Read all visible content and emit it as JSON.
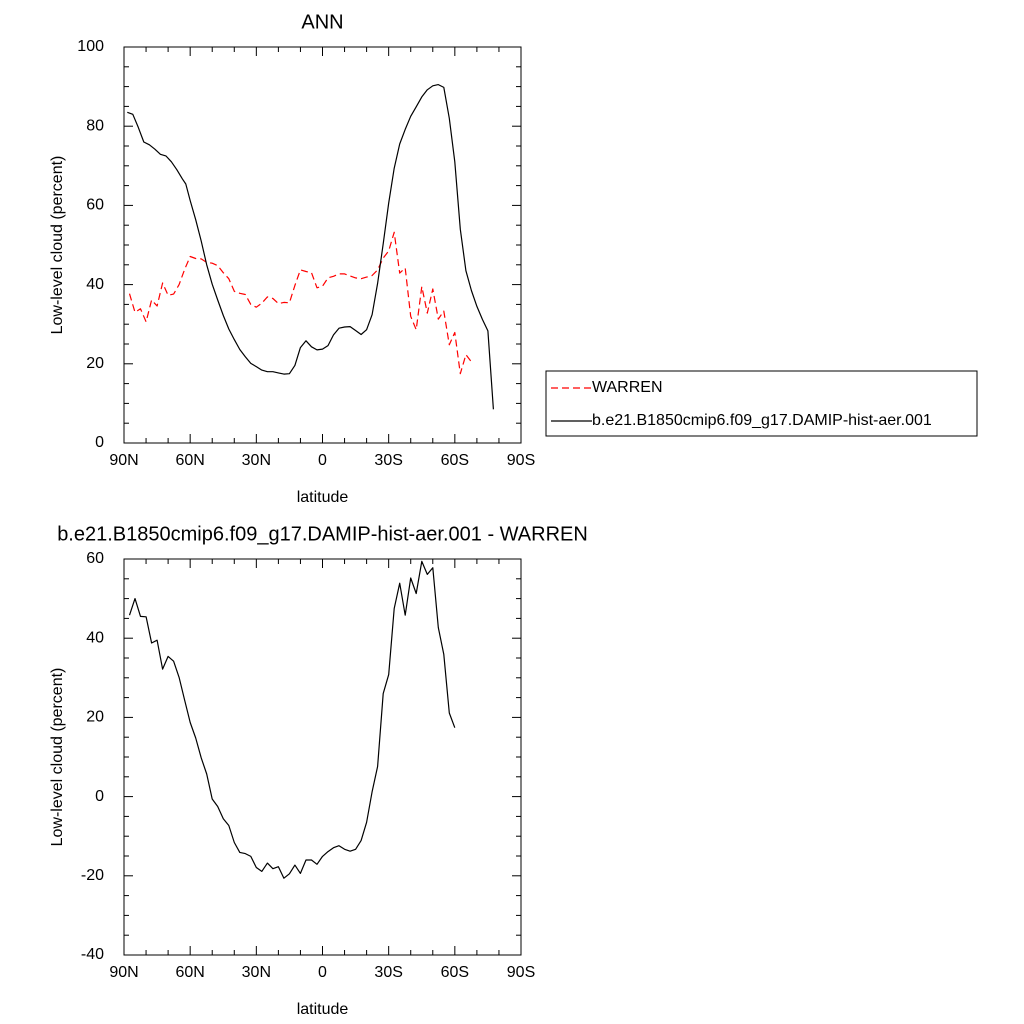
{
  "chart_data": [
    {
      "type": "line",
      "title": "ANN",
      "xlabel": "latitude",
      "ylabel": "Low-level cloud (percent)",
      "xlim": [
        90,
        -90
      ],
      "ylim": [
        0,
        100
      ],
      "x_ticks": [
        90,
        60,
        30,
        0,
        -30,
        -60,
        -90
      ],
      "x_tick_labels": [
        "90N",
        "60N",
        "30N",
        "0",
        "30S",
        "60S",
        "90S"
      ],
      "y_ticks": [
        0,
        20,
        40,
        60,
        80,
        100
      ],
      "y_tick_labels": [
        "0",
        "20",
        "40",
        "60",
        "80",
        "100"
      ],
      "legend": "outside-right",
      "series": [
        {
          "name": "WARREN",
          "color": "#ff0000",
          "dash": "dashed",
          "points": [
            [
              87.5,
              37.7
            ],
            [
              85,
              33
            ],
            [
              82.5,
              33.9
            ],
            [
              80,
              30.6
            ],
            [
              77.5,
              36.1
            ],
            [
              75,
              34.6
            ],
            [
              72.5,
              40.4
            ],
            [
              70,
              37.3
            ],
            [
              67.5,
              37.6
            ],
            [
              65,
              40
            ],
            [
              62.5,
              43.9
            ],
            [
              60,
              47.1
            ],
            [
              57.5,
              46.6
            ],
            [
              55,
              46.5
            ],
            [
              52.5,
              45.6
            ],
            [
              50,
              45.4
            ],
            [
              47.5,
              44.8
            ],
            [
              45,
              43
            ],
            [
              42.5,
              41.5
            ],
            [
              40,
              38.3
            ],
            [
              37.5,
              37.8
            ],
            [
              35,
              37.5
            ],
            [
              32.5,
              35
            ],
            [
              30,
              34.3
            ],
            [
              27.5,
              35.3
            ],
            [
              25,
              36.9
            ],
            [
              22.5,
              36.5
            ],
            [
              20,
              35.2
            ],
            [
              17.5,
              35.5
            ],
            [
              15,
              35.4
            ],
            [
              12.5,
              39.8
            ],
            [
              10,
              43.7
            ],
            [
              7.5,
              43.3
            ],
            [
              5,
              43
            ],
            [
              2.5,
              39.2
            ],
            [
              0,
              39.6
            ],
            [
              -2.5,
              41.7
            ],
            [
              -5,
              42.1
            ],
            [
              -7.5,
              42.7
            ],
            [
              -10,
              42.7
            ],
            [
              -12.5,
              42.2
            ],
            [
              -15,
              41.7
            ],
            [
              -17.5,
              41.5
            ],
            [
              -20,
              41.9
            ],
            [
              -22.5,
              42.3
            ],
            [
              -25,
              43.7
            ],
            [
              -27.5,
              46.7
            ],
            [
              -30,
              48.5
            ],
            [
              -32.5,
              53.2
            ],
            [
              -35,
              42.9
            ],
            [
              -37.5,
              44.2
            ],
            [
              -40,
              32
            ],
            [
              -42.5,
              28.6
            ],
            [
              -45,
              39.5
            ],
            [
              -47.5,
              32.8
            ],
            [
              -50,
              38.9
            ],
            [
              -52.5,
              31.3
            ],
            [
              -55,
              33.3
            ],
            [
              -57.5,
              24.8
            ],
            [
              -60,
              27.9
            ],
            [
              -62.5,
              17.5
            ],
            [
              -65,
              22.3
            ],
            [
              -67.5,
              20.5
            ]
          ]
        },
        {
          "name": "b.e21.B1850cmip6.f09_g17.DAMIP-hist-aer.001",
          "color": "#000000",
          "dash": "solid",
          "points": [
            [
              88.5,
              83.5
            ],
            [
              86,
              83
            ],
            [
              83.5,
              79.7
            ],
            [
              81,
              76
            ],
            [
              78.5,
              75.3
            ],
            [
              76,
              74.2
            ],
            [
              73.5,
              72.9
            ],
            [
              71,
              72.5
            ],
            [
              68.5,
              71
            ],
            [
              66,
              69
            ],
            [
              63.5,
              66.7
            ],
            [
              62,
              65.4
            ],
            [
              60,
              61.2
            ],
            [
              57.5,
              56.4
            ],
            [
              55,
              51
            ],
            [
              52.5,
              45
            ],
            [
              50,
              40.1
            ],
            [
              47.5,
              36.1
            ],
            [
              45,
              32.2
            ],
            [
              42.5,
              28.8
            ],
            [
              40,
              26.1
            ],
            [
              37.5,
              23.6
            ],
            [
              35,
              21.8
            ],
            [
              32.5,
              20.1
            ],
            [
              30,
              19.3
            ],
            [
              27.5,
              18.4
            ],
            [
              25,
              18
            ],
            [
              22.5,
              18
            ],
            [
              20,
              17.7
            ],
            [
              17.5,
              17.4
            ],
            [
              15,
              17.5
            ],
            [
              12.5,
              19.6
            ],
            [
              10,
              24.1
            ],
            [
              7.5,
              25.8
            ],
            [
              5,
              24.3
            ],
            [
              2.5,
              23.5
            ],
            [
              0,
              23.7
            ],
            [
              -2.5,
              24.6
            ],
            [
              -5,
              27.3
            ],
            [
              -7.5,
              29
            ],
            [
              -10,
              29.3
            ],
            [
              -12.5,
              29.4
            ],
            [
              -15,
              28.4
            ],
            [
              -17.5,
              27.4
            ],
            [
              -20,
              28.6
            ],
            [
              -22.5,
              32.4
            ],
            [
              -25,
              40.3
            ],
            [
              -27.5,
              50.3
            ],
            [
              -30,
              60.6
            ],
            [
              -32.5,
              69.4
            ],
            [
              -35,
              75.5
            ],
            [
              -37.5,
              79.2
            ],
            [
              -40,
              82.5
            ],
            [
              -42.5,
              84.9
            ],
            [
              -45,
              87.4
            ],
            [
              -47.5,
              89.2
            ],
            [
              -50,
              90.2
            ],
            [
              -52.5,
              90.5
            ],
            [
              -55,
              89.8
            ],
            [
              -57.5,
              82
            ],
            [
              -60,
              71
            ],
            [
              -62.5,
              54
            ],
            [
              -65,
              43.5
            ],
            [
              -67.5,
              38.5
            ],
            [
              -70,
              34.5
            ],
            [
              -72.5,
              31.2
            ],
            [
              -75,
              28.3
            ],
            [
              -77.5,
              8.5
            ]
          ]
        }
      ]
    },
    {
      "type": "line",
      "title": "b.e21.B1850cmip6.f09_g17.DAMIP-hist-aer.001 - WARREN",
      "xlabel": "latitude",
      "ylabel": "Low-level cloud (percent)",
      "xlim": [
        90,
        -90
      ],
      "ylim": [
        -40,
        60
      ],
      "x_ticks": [
        90,
        60,
        30,
        0,
        -30,
        -60,
        -90
      ],
      "x_tick_labels": [
        "90N",
        "60N",
        "30N",
        "0",
        "30S",
        "60S",
        "90S"
      ],
      "y_ticks": [
        -40,
        -20,
        0,
        20,
        40,
        60
      ],
      "y_tick_labels": [
        "-40",
        "-20",
        "0",
        "20",
        "40",
        "60"
      ],
      "series": [
        {
          "color": "#000000",
          "dash": "solid",
          "points": [
            [
              87.5,
              45.8
            ],
            [
              85,
              50
            ],
            [
              82.5,
              45.5
            ],
            [
              80,
              45.4
            ],
            [
              77.5,
              38.8
            ],
            [
              75,
              39.5
            ],
            [
              72.5,
              32.2
            ],
            [
              70,
              35.4
            ],
            [
              67.5,
              34.2
            ],
            [
              65,
              30.1
            ],
            [
              62.5,
              24.3
            ],
            [
              60,
              18.7
            ],
            [
              57.5,
              14.8
            ],
            [
              55,
              9.8
            ],
            [
              52.5,
              5.7
            ],
            [
              50,
              -0.6
            ],
            [
              47.5,
              -2.5
            ],
            [
              45,
              -5.6
            ],
            [
              42.5,
              -7.3
            ],
            [
              40,
              -11.6
            ],
            [
              37.5,
              -14.1
            ],
            [
              35,
              -14.4
            ],
            [
              32.5,
              -15.1
            ],
            [
              30,
              -17.9
            ],
            [
              27.5,
              -18.9
            ],
            [
              25,
              -16.8
            ],
            [
              22.5,
              -18.2
            ],
            [
              20,
              -17.7
            ],
            [
              17.5,
              -20.6
            ],
            [
              15,
              -19.5
            ],
            [
              12.5,
              -17.3
            ],
            [
              10,
              -19.4
            ],
            [
              7.5,
              -16
            ],
            [
              5,
              -16
            ],
            [
              2.5,
              -17.1
            ],
            [
              0,
              -15.1
            ],
            [
              -2.5,
              -13.9
            ],
            [
              -5,
              -12.9
            ],
            [
              -7.5,
              -12.4
            ],
            [
              -10,
              -13.3
            ],
            [
              -12.5,
              -13.8
            ],
            [
              -15,
              -13.3
            ],
            [
              -17.5,
              -11.1
            ],
            [
              -20,
              -6.5
            ],
            [
              -22.5,
              1.2
            ],
            [
              -25,
              7.6
            ],
            [
              -27.5,
              26
            ],
            [
              -30,
              30.8
            ],
            [
              -32.5,
              47.5
            ],
            [
              -35,
              53.9
            ],
            [
              -37.5,
              45.8
            ],
            [
              -40,
              55.2
            ],
            [
              -42.5,
              51.3
            ],
            [
              -45,
              59.4
            ],
            [
              -47.5,
              56.1
            ],
            [
              -50,
              57.8
            ],
            [
              -52.5,
              42.7
            ],
            [
              -55,
              35.9
            ],
            [
              -57.5,
              21.1
            ],
            [
              -60,
              17.4
            ]
          ]
        }
      ]
    }
  ]
}
